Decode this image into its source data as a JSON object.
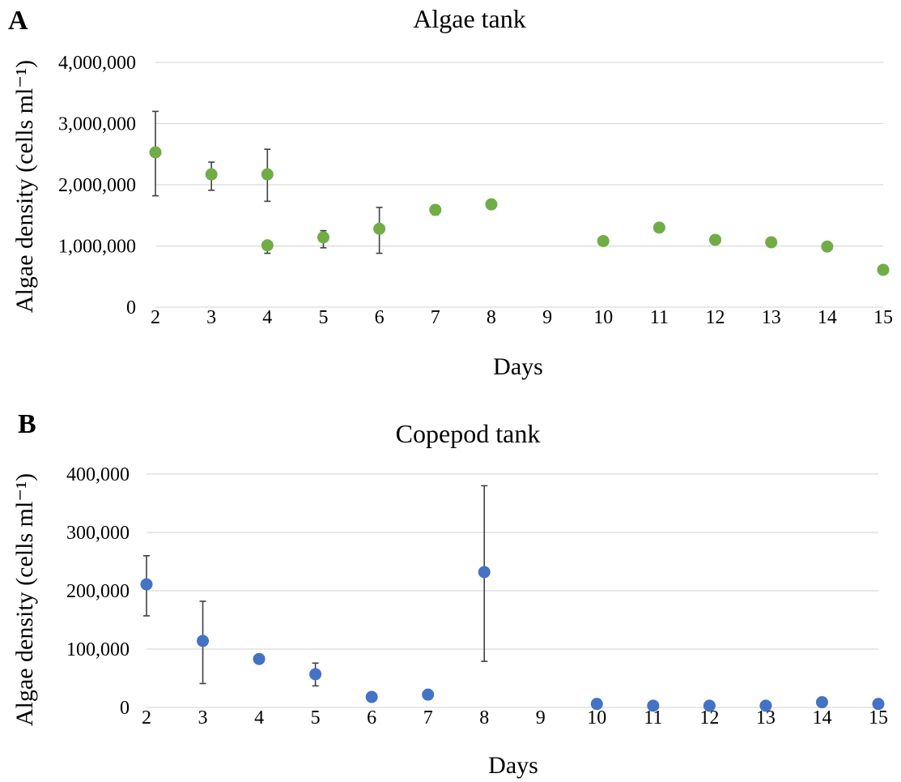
{
  "chart_data": [
    {
      "type": "scatter",
      "panel_label": "A",
      "title": "Algae tank",
      "xlabel": "Days",
      "ylabel": "Algae density (cells ml⁻¹)",
      "categories": [
        "2",
        "3",
        "4",
        "5",
        "6",
        "7",
        "8",
        "9",
        "10",
        "11",
        "12",
        "13",
        "14",
        "15"
      ],
      "yticks": [
        "0",
        "1,000,000",
        "2,000,000",
        "3,000,000",
        "4,000,000"
      ],
      "ylim": [
        0,
        4000000
      ],
      "grid": true,
      "color": "#70ad47",
      "points": [
        {
          "x": "2",
          "y": 2530000,
          "err_low": 1820000,
          "err_high": 3200000
        },
        {
          "x": "3",
          "y": 2170000,
          "err_low": 1910000,
          "err_high": 2370000
        },
        {
          "x": "4",
          "y": 2170000,
          "err_low": 1730000,
          "err_high": 2580000
        },
        {
          "x": "4",
          "y": 1010000,
          "err_low": 880000,
          "err_high": 1080000
        },
        {
          "x": "5",
          "y": 1140000,
          "err_low": 970000,
          "err_high": 1250000
        },
        {
          "x": "6",
          "y": 1280000,
          "err_low": 880000,
          "err_high": 1630000
        },
        {
          "x": "7",
          "y": 1590000,
          "err_low": 1510000,
          "err_high": 1640000
        },
        {
          "x": "8",
          "y": 1680000,
          "err_low": 1640000,
          "err_high": 1720000
        },
        {
          "x": "10",
          "y": 1080000
        },
        {
          "x": "11",
          "y": 1300000
        },
        {
          "x": "12",
          "y": 1100000
        },
        {
          "x": "13",
          "y": 1060000
        },
        {
          "x": "14",
          "y": 990000
        },
        {
          "x": "15",
          "y": 610000
        }
      ]
    },
    {
      "type": "scatter",
      "panel_label": "B",
      "title": "Copepod tank",
      "xlabel": "Days",
      "ylabel": "Algae density (cells ml⁻¹)",
      "categories": [
        "2",
        "3",
        "4",
        "5",
        "6",
        "7",
        "8",
        "9",
        "10",
        "11",
        "12",
        "13",
        "14",
        "15"
      ],
      "yticks": [
        "0",
        "100,000",
        "200,000",
        "300,000",
        "400,000"
      ],
      "ylim": [
        0,
        400000
      ],
      "grid": true,
      "color": "#4472c4",
      "points": [
        {
          "x": "2",
          "y": 211000,
          "err_low": 157000,
          "err_high": 260000
        },
        {
          "x": "3",
          "y": 114000,
          "err_low": 41000,
          "err_high": 182000
        },
        {
          "x": "4",
          "y": 83000
        },
        {
          "x": "5",
          "y": 57000,
          "err_low": 37000,
          "err_high": 76000
        },
        {
          "x": "6",
          "y": 18000
        },
        {
          "x": "7",
          "y": 22000,
          "err_low": 14000,
          "err_high": 27000
        },
        {
          "x": "8",
          "y": 232000,
          "err_low": 79000,
          "err_high": 380000
        },
        {
          "x": "10",
          "y": 6000
        },
        {
          "x": "11",
          "y": 3000
        },
        {
          "x": "12",
          "y": 3000
        },
        {
          "x": "13",
          "y": 3000
        },
        {
          "x": "14",
          "y": 9000
        },
        {
          "x": "15",
          "y": 6000
        }
      ]
    }
  ]
}
